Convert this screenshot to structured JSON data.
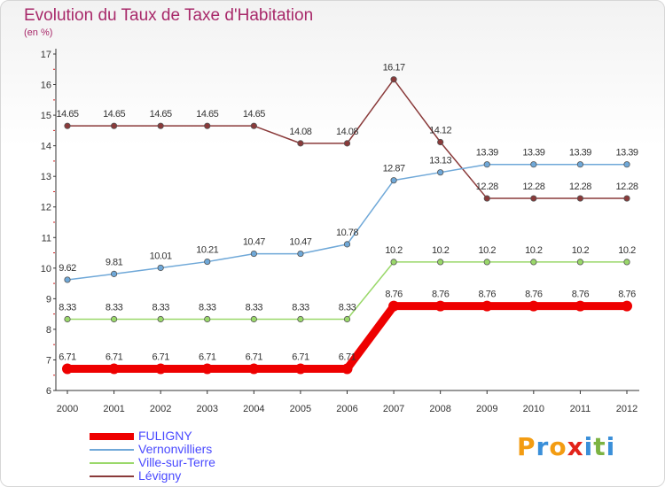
{
  "header": {
    "title": "Evolution du Taux de Taxe d'Habitation",
    "unit": "(en %)"
  },
  "logo": {
    "letters": [
      "P",
      "r",
      "o",
      "x",
      "i",
      "t",
      "i"
    ],
    "colors": [
      "#f39c12",
      "#3a8fd9",
      "#f39c12",
      "#e2231a",
      "#3a8fd9",
      "#7cb342",
      "#3a8fd9"
    ]
  },
  "chart_data": {
    "type": "line",
    "title": "Evolution du Taux de Taxe d'Habitation",
    "ylabel": "(en %)",
    "xlabel": "",
    "x": [
      "2000",
      "2001",
      "2002",
      "2003",
      "2004",
      "2005",
      "2006",
      "2007",
      "2008",
      "2009",
      "2010",
      "2011",
      "2012"
    ],
    "ylim": [
      6,
      17
    ],
    "yticks": [
      6,
      7,
      8,
      9,
      10,
      11,
      12,
      13,
      14,
      15,
      16,
      17
    ],
    "grid": false,
    "legend_position": "bottom-left",
    "series": [
      {
        "name": "FULIGNY",
        "color": "#ee0000",
        "thick": true,
        "values": [
          6.71,
          6.71,
          6.71,
          6.71,
          6.71,
          6.71,
          6.71,
          8.76,
          8.76,
          8.76,
          8.76,
          8.76,
          8.76
        ],
        "labels": [
          "6.71",
          "6.71",
          "6.71",
          "6.71",
          "6.71",
          "6.71",
          "6.71",
          "8.76",
          "8.76",
          "8.76",
          "8.76",
          "8.76",
          "8.76"
        ]
      },
      {
        "name": "Vernonvilliers",
        "color": "#6fa8d8",
        "thick": false,
        "values": [
          9.62,
          9.81,
          10.01,
          10.21,
          10.47,
          10.47,
          10.78,
          12.87,
          13.13,
          13.39,
          13.39,
          13.39,
          13.39
        ],
        "labels": [
          "9.62",
          "9.81",
          "10.01",
          "10.21",
          "10.47",
          "10.47",
          "10.78",
          "12.87",
          "13.13",
          "13.39",
          "13.39",
          "13.39",
          "13.39"
        ]
      },
      {
        "name": "Ville-sur-Terre",
        "color": "#9ad86a",
        "thick": false,
        "values": [
          8.33,
          8.33,
          8.33,
          8.33,
          8.33,
          8.33,
          8.33,
          10.2,
          10.2,
          10.2,
          10.2,
          10.2,
          10.2
        ],
        "labels": [
          "8.33",
          "8.33",
          "8.33",
          "8.33",
          "8.33",
          "8.33",
          "8.33",
          "10.2",
          "10.2",
          "10.2",
          "10.2",
          "10.2",
          "10.2"
        ]
      },
      {
        "name": "Lévigny",
        "color": "#8a3a3a",
        "thick": false,
        "values": [
          14.65,
          14.65,
          14.65,
          14.65,
          14.65,
          14.08,
          14.08,
          16.17,
          14.12,
          12.28,
          12.28,
          12.28,
          12.28
        ],
        "labels": [
          "14.65",
          "14.65",
          "14.65",
          "14.65",
          "14.65",
          "14.08",
          "14.08",
          "16.17",
          "14.12",
          "12.28",
          "12.28",
          "12.28",
          "12.28"
        ]
      }
    ]
  }
}
